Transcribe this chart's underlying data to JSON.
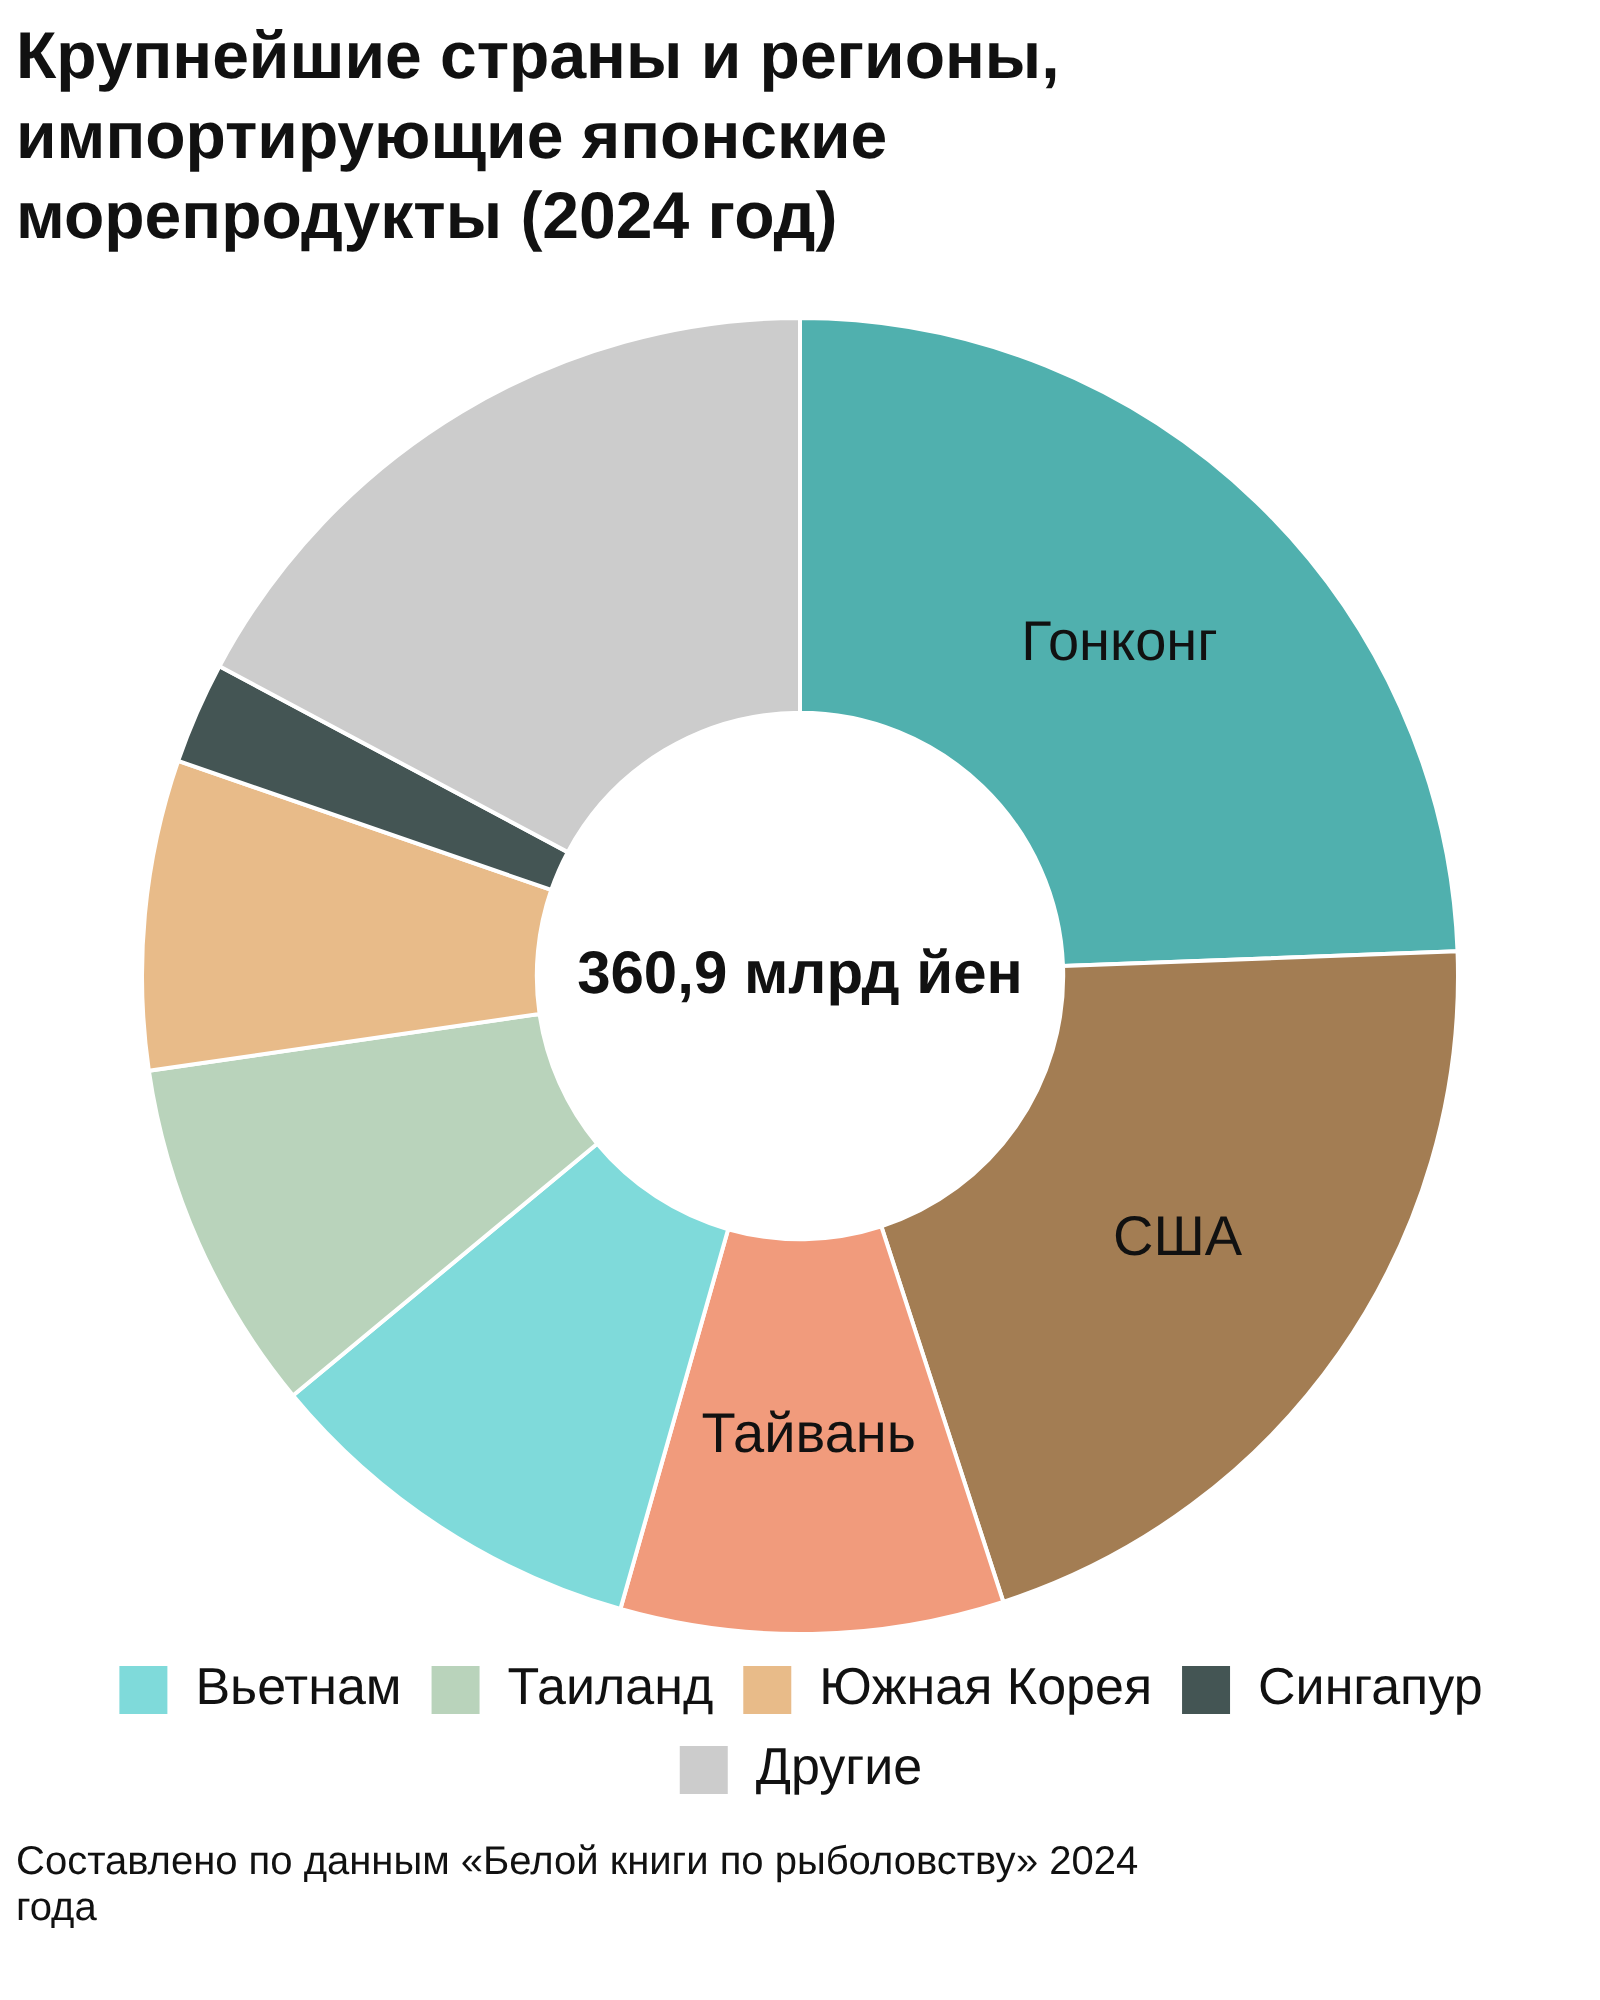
{
  "chart_data": {
    "type": "donut",
    "title": "Крупнейшие страны и регионы, импортирующие японские морепродукты (2024 год)",
    "categories": [
      "Гонконг",
      "США",
      "Тайвань",
      "Вьетнам",
      "Таиланд",
      "Южная Корея",
      "Сингапур",
      "Другие"
    ],
    "values": [
      24.4,
      20.6,
      9.4,
      9.6,
      8.7,
      7.6,
      2.5,
      17.2
    ],
    "colors": [
      "#50b0ae",
      "#a37d53",
      "#f19b7c",
      "#7fdada",
      "#b9d3bb",
      "#e8bb89",
      "#445554",
      "#cccccc"
    ],
    "legend": "bottom",
    "annotations": [
      "360,9 млрд йен",
      "Составлено по данным «Белой книги по рыболовству» 2024 года"
    ]
  }
}
